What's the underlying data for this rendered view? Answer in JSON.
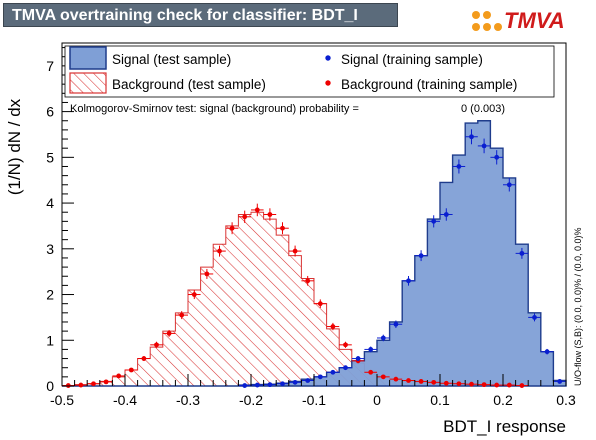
{
  "title": "TMVA overtraining check for classifier: BDT_I",
  "logo_text": "TMVA",
  "colors": {
    "signal_fill": "#7f9fd6",
    "signal_line": "#1f3c8c",
    "signal_marker": "#0a1fd0",
    "background_hatch": "#d93434",
    "background_marker": "#ee0000",
    "title_bg": "#5b6b7b",
    "logo_red": "#d01b1b",
    "logo_orange": "#f39b1c"
  },
  "legend": {
    "signal_test": "Signal (test sample)",
    "background_test": "Background (test sample)",
    "signal_train": "Signal (training sample)",
    "background_train": "Background (training sample)"
  },
  "ks_text": "Kolmogorov-Smirnov test: signal (background) probability =",
  "ks_value": "0 (0.003)",
  "overflow_text": "U/O-flow (S,B): (0.0, 0.0)% / (0.0, 0.0)%",
  "chart_data": {
    "type": "histogram",
    "xlabel": "BDT_I response",
    "ylabel": "(1/N) dN / dx",
    "xlim": [
      -0.5,
      0.3
    ],
    "ylim": [
      0,
      7.5
    ],
    "x_ticks": [
      "-0.5",
      "-0.4",
      "-0.3",
      "-0.2",
      "-0.1",
      "0",
      "0.1",
      "0.2",
      "0.3"
    ],
    "x_tick_values": [
      -0.5,
      -0.4,
      -0.3,
      -0.2,
      -0.1,
      0,
      0.1,
      0.2,
      0.3
    ],
    "y_ticks": [
      "0",
      "1",
      "2",
      "3",
      "4",
      "5",
      "6",
      "7"
    ],
    "y_tick_values": [
      0,
      1,
      2,
      3,
      4,
      5,
      6,
      7
    ],
    "bin_edges_start": -0.5,
    "bin_width": 0.02,
    "series": [
      {
        "name": "Signal (test sample)",
        "kind": "filled",
        "values": [
          0,
          0,
          0,
          0,
          0,
          0,
          0,
          0,
          0,
          0,
          0,
          0,
          0,
          0,
          0.02,
          0.03,
          0.04,
          0.06,
          0.1,
          0.15,
          0.2,
          0.3,
          0.4,
          0.55,
          0.75,
          1.0,
          1.4,
          2.3,
          2.85,
          3.65,
          4.45,
          5.05,
          5.75,
          5.8,
          5.2,
          4.55,
          3.1,
          1.6,
          0.75,
          0.12
        ]
      },
      {
        "name": "Background (test sample)",
        "kind": "hatched",
        "values": [
          0.01,
          0.03,
          0.05,
          0.1,
          0.2,
          0.35,
          0.6,
          0.85,
          1.2,
          1.6,
          2.1,
          2.6,
          3.1,
          3.5,
          3.75,
          3.8,
          3.65,
          3.3,
          2.85,
          2.35,
          1.8,
          1.25,
          0.8,
          0.5,
          0.3,
          0.2,
          0.14,
          0.1,
          0.08,
          0.06,
          0.05,
          0.04,
          0.03,
          0.02,
          0.02,
          0.01,
          0.01,
          0,
          0,
          0
        ]
      },
      {
        "name": "Signal (training sample)",
        "kind": "points",
        "values": [
          0,
          0,
          0,
          0,
          0,
          0,
          0,
          0,
          0,
          0,
          0,
          0,
          0,
          0,
          0.01,
          0.02,
          0.03,
          0.05,
          0.08,
          0.12,
          0.2,
          0.3,
          0.4,
          0.6,
          0.8,
          1.05,
          1.35,
          2.3,
          2.85,
          3.6,
          3.75,
          4.8,
          5.45,
          5.25,
          5.0,
          4.4,
          2.9,
          1.5,
          0.75,
          0.1
        ]
      },
      {
        "name": "Background (training sample)",
        "kind": "points",
        "values": [
          0.01,
          0.02,
          0.05,
          0.09,
          0.22,
          0.35,
          0.6,
          0.9,
          1.15,
          1.55,
          2.0,
          2.45,
          2.95,
          3.45,
          3.7,
          3.85,
          3.75,
          3.45,
          2.95,
          2.3,
          1.8,
          1.3,
          0.9,
          0.55,
          0.3,
          0.2,
          0.15,
          0.12,
          0.1,
          0.08,
          0.06,
          0.05,
          0.04,
          0.03,
          0.02,
          0.02,
          0.01,
          0,
          0,
          0
        ]
      }
    ]
  }
}
